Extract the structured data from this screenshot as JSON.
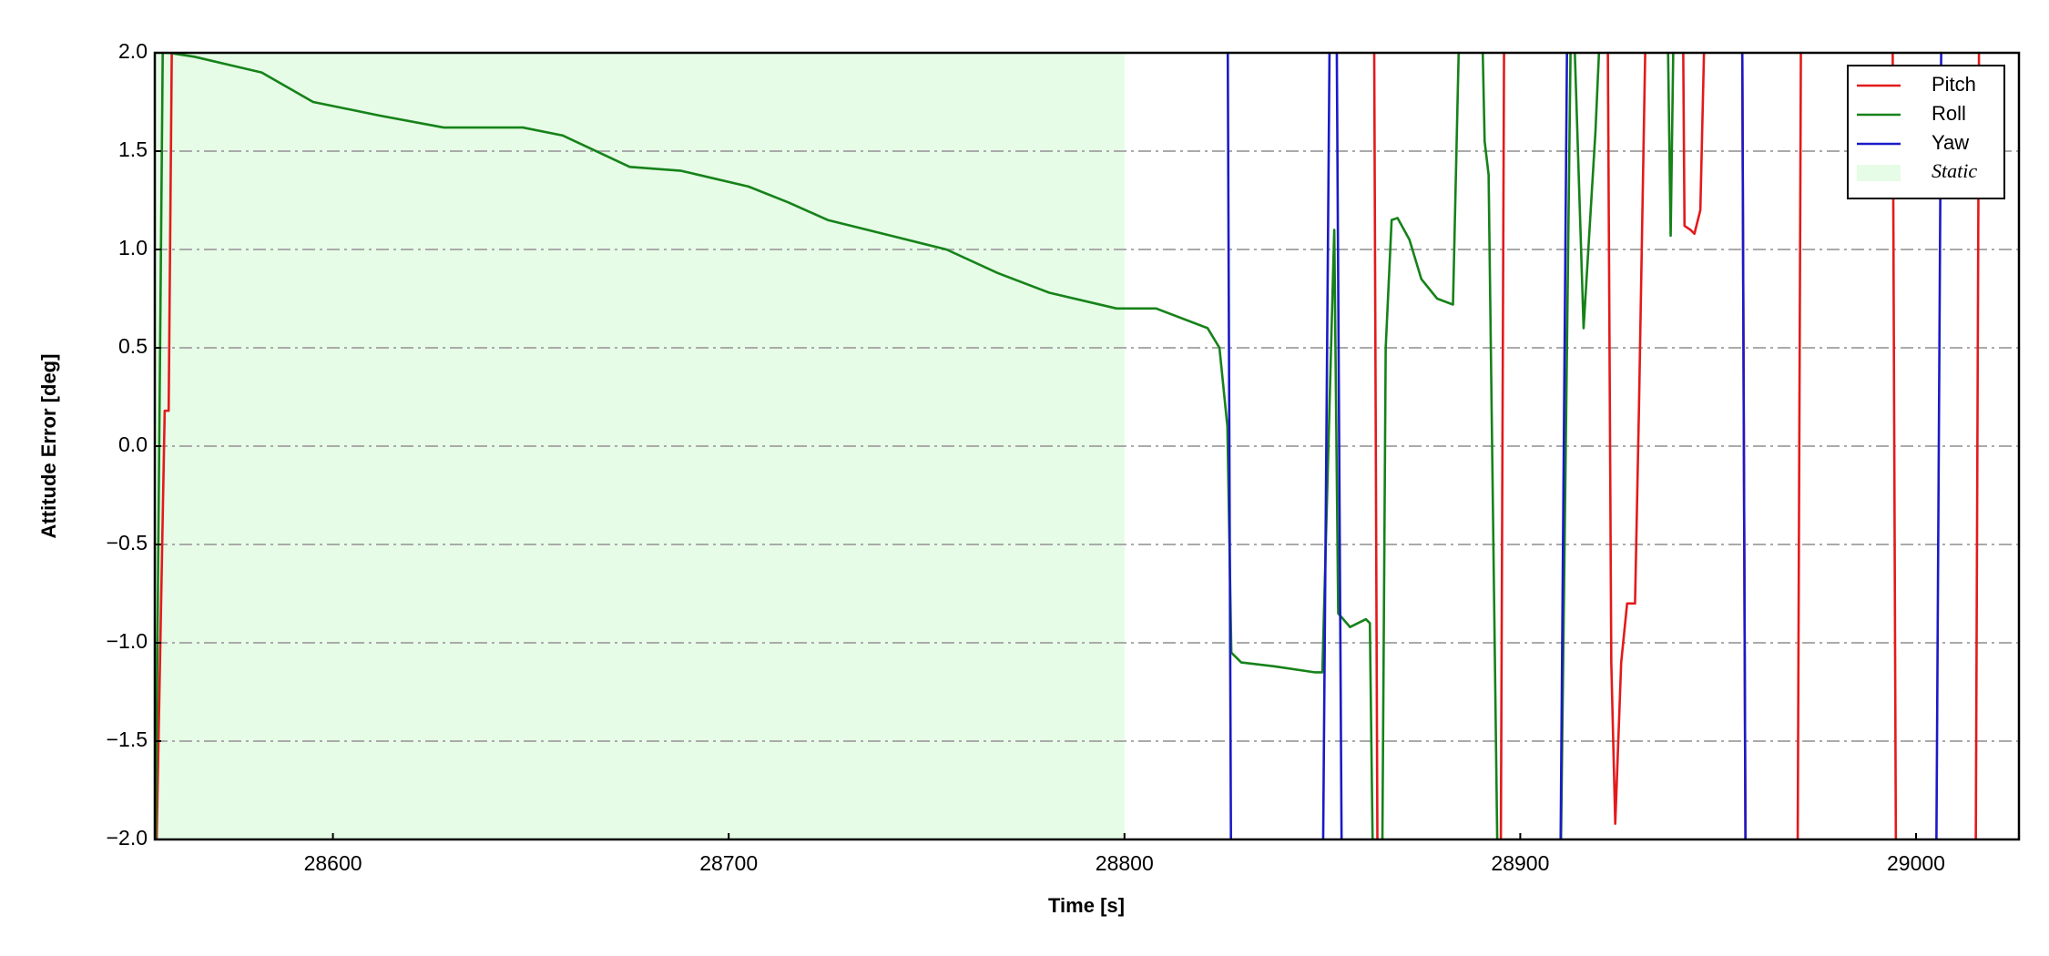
{
  "chart_data": {
    "type": "line",
    "xlabel": "Time [s]",
    "ylabel": "Attitude Error [deg]",
    "xlim": [
      28555,
      29026
    ],
    "ylim": [
      -2,
      2
    ],
    "xticks": [
      28600,
      28700,
      28800,
      28900,
      29000
    ],
    "yticks": [
      {
        "value": -2,
        "label": "−2.0"
      },
      {
        "value": -1.5,
        "label": "−1.5"
      },
      {
        "value": -1,
        "label": "−1.0"
      },
      {
        "value": -0.5,
        "label": "−0.5"
      },
      {
        "value": 0,
        "label": "0.0"
      },
      {
        "value": 0.5,
        "label": "0.5"
      },
      {
        "value": 1,
        "label": "1.0"
      },
      {
        "value": 1.5,
        "label": "1.5"
      },
      {
        "value": 2,
        "label": "2.0"
      }
    ],
    "grid": true,
    "legend": "upper right",
    "shade": {
      "name": "Static",
      "xrange": [
        28555,
        28800
      ],
      "color": "#e6fce6"
    },
    "series": [
      {
        "name": "Pitch",
        "color": "#e31a1c",
        "x": [
          28555,
          28557.5,
          28558.5,
          28559.5,
          28863,
          28864,
          28895,
          28896,
          28922,
          28923,
          28924,
          28925.5,
          28927,
          28929,
          28930,
          28932,
          28941,
          28941.5,
          28943,
          28944,
          28945.5,
          28947,
          28956,
          28957,
          28970,
          28971,
          28994,
          28995,
          29015,
          29016
        ],
        "values": [
          -2.5,
          0.18,
          0.18,
          2.5,
          2.5,
          -2.5,
          -2.5,
          2.5,
          2.5,
          -1.1,
          -1.92,
          -1.1,
          -0.8,
          -0.8,
          0.2,
          2.5,
          2.5,
          1.12,
          1.1,
          1.08,
          1.2,
          2.5,
          2.5,
          -2.5,
          -2.5,
          2.5,
          2.5,
          -2.5,
          -2.5,
          2.5
        ]
      },
      {
        "name": "Roll",
        "color": "#16821a",
        "x": [
          28555,
          28557,
          28558.5,
          28565,
          28582,
          28595,
          28612,
          28628,
          28648,
          28658,
          28675,
          28688,
          28705,
          28715,
          28725,
          28741,
          28755,
          28768,
          28781,
          28798,
          28808,
          28821,
          28824,
          28826,
          28827,
          28829.5,
          28838,
          28848,
          28850,
          28853,
          28854,
          28857,
          28861,
          28862,
          28863,
          28865,
          28866,
          28867.5,
          28869,
          28872,
          28875,
          28879,
          28883,
          28885,
          28890,
          28891,
          28892,
          28894.5,
          28910,
          28913,
          28916,
          28919,
          28921,
          28937,
          28938,
          28939
        ],
        "values": [
          -2.5,
          2.0,
          2.0,
          1.98,
          1.9,
          1.75,
          1.68,
          1.62,
          1.62,
          1.58,
          1.42,
          1.4,
          1.32,
          1.24,
          1.15,
          1.07,
          1.0,
          0.88,
          0.78,
          0.7,
          0.7,
          0.6,
          0.5,
          0.1,
          -1.05,
          -1.1,
          -1.12,
          -1.15,
          -1.15,
          1.1,
          -0.85,
          -0.92,
          -0.88,
          -0.9,
          -2.5,
          -2.5,
          0.5,
          1.15,
          1.16,
          1.05,
          0.85,
          0.75,
          0.72,
          2.5,
          2.5,
          1.55,
          1.38,
          -2.5,
          -2.5,
          2.5,
          0.6,
          1.6,
          2.5,
          2.5,
          1.07,
          2.5
        ]
      },
      {
        "name": "Yaw",
        "color": "#1a1ac8",
        "x": [
          28555,
          28826,
          28827,
          28850,
          28852,
          28853.5,
          28855,
          28910,
          28912,
          28956,
          28957,
          29005,
          29006.5,
          29008
        ],
        "values": [
          2.5,
          2.5,
          -2.5,
          -2.5,
          2.5,
          2.5,
          -2.5,
          -2.5,
          2.5,
          2.5,
          -2.5,
          -2.5,
          2.5,
          2.5
        ]
      }
    ]
  }
}
